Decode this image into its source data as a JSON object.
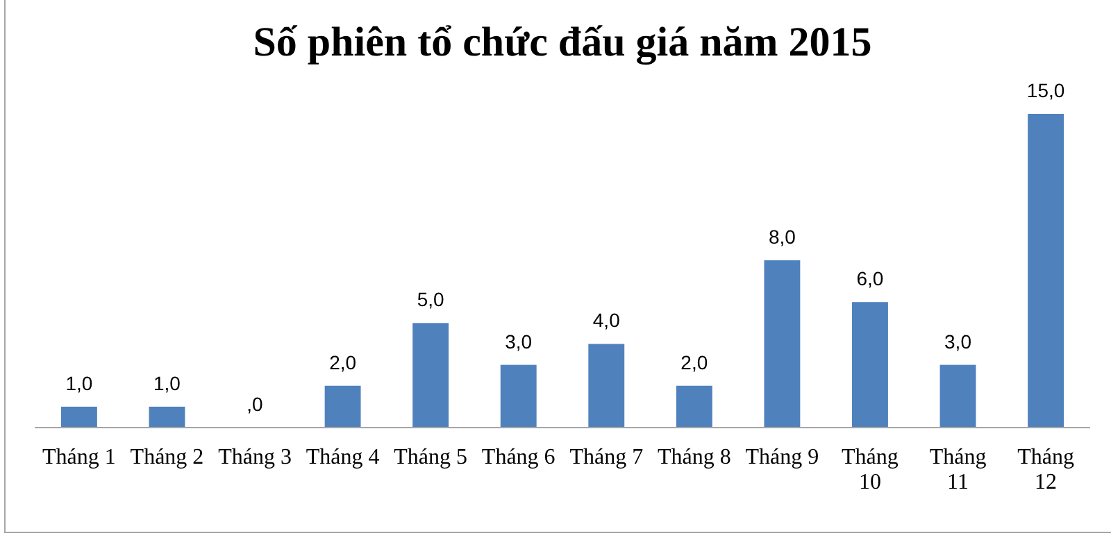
{
  "chart_data": {
    "type": "bar",
    "title": "Số phiên tổ chức đấu giá năm 2015",
    "categories": [
      "Tháng 1",
      "Tháng 2",
      "Tháng 3",
      "Tháng 4",
      "Tháng 5",
      "Tháng 6",
      "Tháng 7",
      "Tháng 8",
      "Tháng 9",
      "Tháng 10",
      "Tháng 11",
      "Tháng 12"
    ],
    "values": [
      1,
      1,
      0,
      2,
      5,
      3,
      4,
      2,
      8,
      6,
      3,
      15
    ],
    "value_labels": [
      "1,0",
      "1,0",
      ",0",
      "2,0",
      "5,0",
      "3,0",
      "4,0",
      "2,0",
      "8,0",
      "6,0",
      "3,0",
      "15,0"
    ],
    "color": "#4f81bd",
    "relative": false
  }
}
